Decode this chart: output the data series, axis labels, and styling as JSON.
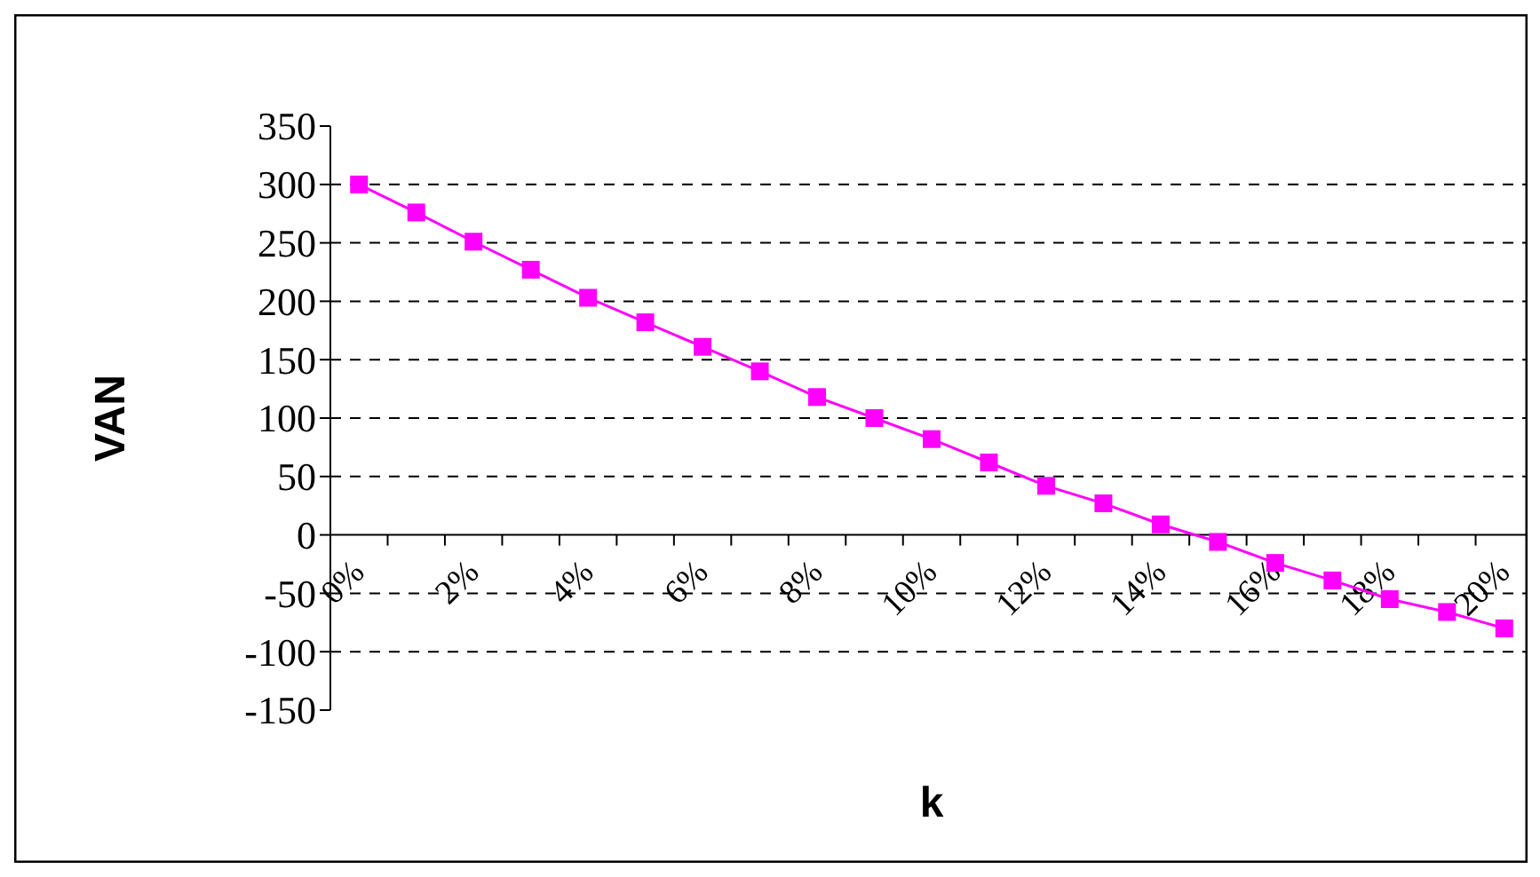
{
  "chart_data": {
    "type": "line",
    "xlabel": "k",
    "ylabel": "VAN",
    "categories": [
      "0%",
      null,
      "2%",
      null,
      "4%",
      null,
      "6%",
      null,
      "8%",
      null,
      "10%",
      null,
      "12%",
      null,
      "14%",
      null,
      "16%",
      null,
      "18%",
      null,
      "20%"
    ],
    "series": [
      {
        "color": "#ff00ff",
        "values": [
          300,
          276,
          251,
          227,
          203,
          182,
          161,
          140,
          118,
          100,
          82,
          62,
          42,
          27,
          9,
          -6,
          -24,
          -39,
          -55,
          -66,
          -80
        ]
      }
    ],
    "ylim": [
      -150,
      350
    ],
    "yticks": [
      -150,
      -100,
      -50,
      0,
      50,
      100,
      150,
      200,
      250,
      300,
      350
    ],
    "grid": "y",
    "marker": "square",
    "line_style": "solid"
  }
}
